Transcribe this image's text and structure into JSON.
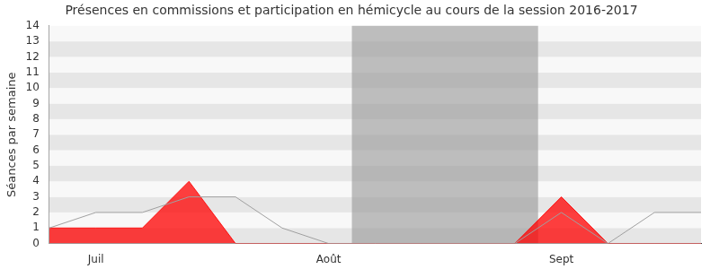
{
  "chart_data": {
    "type": "line",
    "title": "Présences en commissions et participation en hémicycle au cours de la session 2016-2017",
    "y_label": "Séances par semaine",
    "categories": [
      null,
      "Juil",
      null,
      null,
      null,
      null,
      "Août",
      null,
      null,
      null,
      null,
      "Sept",
      null,
      null,
      null
    ],
    "series": [
      {
        "type": "area",
        "color": "#ff0000",
        "values": [
          1,
          1,
          1,
          4,
          0,
          0,
          0,
          0,
          0,
          0,
          0,
          3,
          0,
          0,
          0
        ]
      },
      {
        "type": "line",
        "color": "#a0a0a0",
        "values": [
          1,
          2,
          2,
          3,
          3,
          1,
          0,
          0,
          0,
          0,
          0,
          2,
          0,
          2,
          2
        ]
      }
    ],
    "ylim": [
      0,
      14
    ],
    "yticks": [
      0,
      1,
      2,
      3,
      4,
      5,
      6,
      7,
      8,
      9,
      10,
      11,
      12,
      13,
      14
    ],
    "grid": true,
    "shaded_period": [
      6.5,
      10.5
    ]
  }
}
